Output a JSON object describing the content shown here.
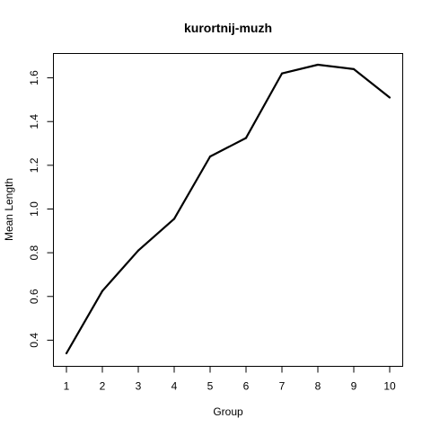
{
  "chart_data": {
    "type": "line",
    "title": "kurortnij-muzh",
    "xlabel": "Group",
    "ylabel": "Mean Length",
    "x": [
      1,
      2,
      3,
      4,
      5,
      6,
      7,
      8,
      9,
      10
    ],
    "xlim": [
      1,
      10
    ],
    "ylim": [
      0.34,
      1.66
    ],
    "x_ticks": [
      1,
      2,
      3,
      4,
      5,
      6,
      7,
      8,
      9,
      10
    ],
    "y_ticks": [
      "0.4",
      "0.6",
      "0.8",
      "1.0",
      "1.2",
      "1.4",
      "1.6"
    ],
    "grid": false,
    "legend": "none",
    "series": [
      {
        "color": "#000000",
        "values": [
          0.34,
          0.625,
          0.81,
          0.955,
          1.24,
          1.325,
          1.62,
          1.66,
          1.64,
          1.51
        ]
      }
    ]
  }
}
